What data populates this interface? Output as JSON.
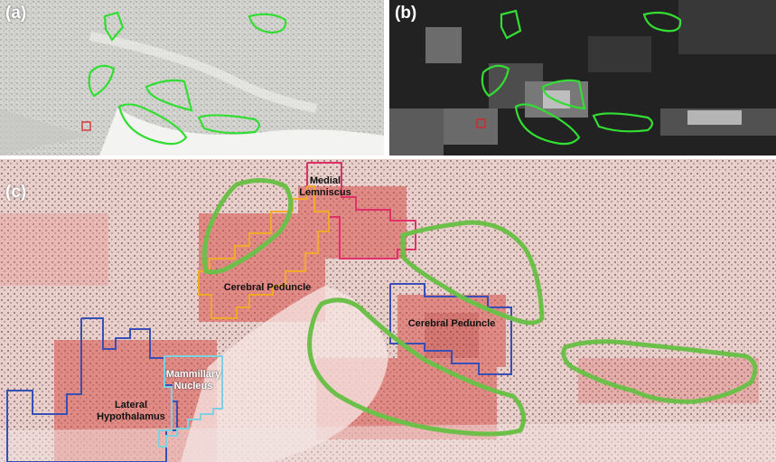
{
  "panels": {
    "a": {
      "label": "(a)"
    },
    "b": {
      "label": "(b)"
    },
    "c": {
      "label": "(c)"
    }
  },
  "regions": {
    "medial_lemniscus": "Medial\nLemniscus",
    "cerebral_peduncle_left": "Cerebral Peduncle",
    "cerebral_peduncle_right": "Cerebral Peduncle",
    "mammillary_nucleus": "Mammillary\nNucleus",
    "lateral_hypothalamus": "Lateral\nHypothalamus"
  },
  "colors": {
    "contour_green": "#33dd33",
    "contour_green_thick": "#6cc04a",
    "medial_lemniscus": "#e0306a",
    "cerebral_peduncle_left": "#f2a92a",
    "cerebral_peduncle_right": "#3a4fb5",
    "mammillary_nucleus": "#7fd1e0",
    "lateral_hypothalamus": "#3a4fb5",
    "marker_red": "#dd2222"
  }
}
